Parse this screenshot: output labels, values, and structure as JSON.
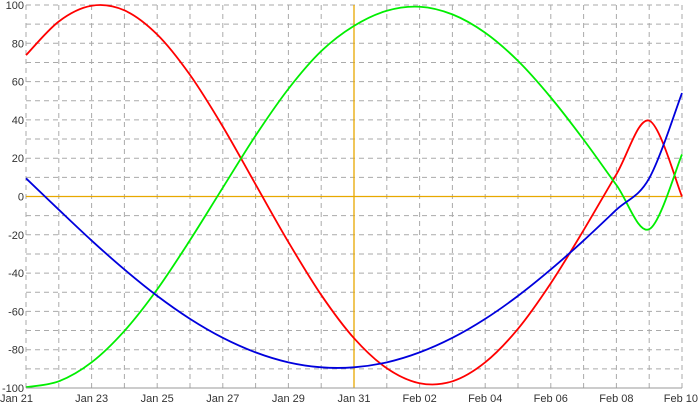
{
  "chart_data": {
    "type": "line",
    "x_type": "date",
    "xlim": [
      "Jan 21",
      "Feb 10"
    ],
    "ylim": [
      -100,
      100
    ],
    "x_ticks": [
      "Jan 21",
      "Jan 23",
      "Jan 25",
      "Jan 27",
      "Jan 29",
      "Jan 31",
      "Feb 02",
      "Feb 04",
      "Feb 06",
      "Feb 08",
      "Feb 10"
    ],
    "y_ticks": [
      "100",
      "80",
      "60",
      "40",
      "20",
      "0",
      "-20",
      "-40",
      "-60",
      "-80",
      "-100"
    ],
    "grid": true,
    "x": [
      "Jan 21",
      "Jan 22",
      "Jan 23",
      "Jan 24",
      "Jan 25",
      "Jan 26",
      "Jan 27",
      "Jan 28",
      "Jan 29",
      "Jan 30",
      "Jan 31",
      "Feb 01",
      "Feb 02",
      "Feb 03",
      "Feb 04",
      "Feb 05",
      "Feb 06",
      "Feb 07",
      "Feb 08",
      "Feb 09",
      "Feb 10"
    ],
    "series": [
      {
        "color": "#ff0000",
        "values": [
          73.8,
          91.4,
          99.6,
          97.2,
          84.6,
          63.5,
          36.5,
          6.3,
          -23.8,
          -51.4,
          -74.0,
          -89.7,
          -97.5,
          -96.5,
          -86.6,
          -69.1,
          -45.3,
          -17.6,
          11.6,
          39.6,
          0.0
        ]
      },
      {
        "color": "#00ee00",
        "values": [
          -99.6,
          -96.5,
          -86.6,
          -70.2,
          -48.5,
          -22.8,
          4.6,
          31.8,
          56.2,
          75.9,
          89.1,
          97.0,
          99.1,
          95.1,
          85.5,
          70.8,
          51.7,
          29.7,
          6.0,
          -17.1,
          22.0
        ]
      },
      {
        "color": "#0000dd",
        "values": [
          9.5,
          -6.9,
          -23.0,
          -38.1,
          -51.9,
          -63.9,
          -73.8,
          -81.4,
          -86.6,
          -89.2,
          -89.2,
          -86.6,
          -81.4,
          -73.8,
          -63.9,
          -51.9,
          -38.1,
          -23.0,
          -6.9,
          9.5,
          54.0
        ]
      }
    ],
    "reference_lines": {
      "color": "#e8a800",
      "x": "Jan 31",
      "y": 0
    }
  }
}
